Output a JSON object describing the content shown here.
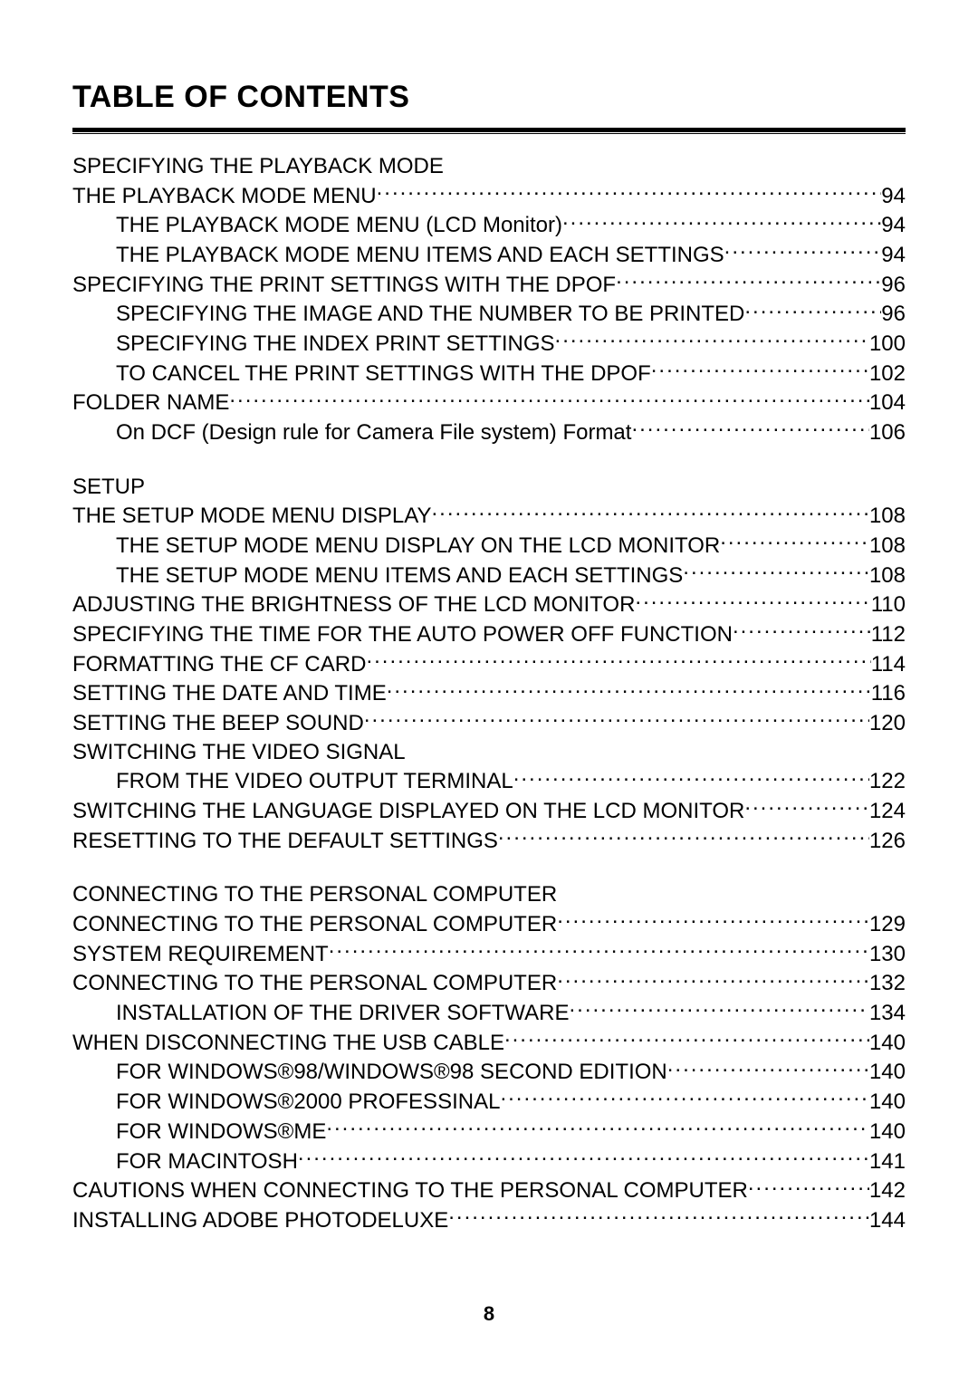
{
  "page": {
    "title": "TABLE OF CONTENTS",
    "pageNumber": "8"
  },
  "sections": [
    {
      "heading": "SPECIFYING THE PLAYBACK MODE",
      "entries": [
        {
          "indent": 1,
          "label": "THE PLAYBACK MODE MENU",
          "page": "94"
        },
        {
          "indent": 2,
          "label": "THE PLAYBACK MODE MENU (LCD Monitor)",
          "page": "94"
        },
        {
          "indent": 2,
          "label": "THE PLAYBACK MODE MENU ITEMS AND EACH SETTINGS",
          "page": "94"
        },
        {
          "indent": 1,
          "label": "SPECIFYING THE PRINT SETTINGS WITH THE DPOF",
          "page": "96"
        },
        {
          "indent": 2,
          "label": "SPECIFYING THE IMAGE AND THE NUMBER TO BE PRINTED",
          "page": "96"
        },
        {
          "indent": 2,
          "label": "SPECIFYING THE INDEX PRINT SETTINGS",
          "page": "100"
        },
        {
          "indent": 2,
          "label": "TO CANCEL THE PRINT SETTINGS WITH THE DPOF",
          "page": "102"
        },
        {
          "indent": 1,
          "label": "FOLDER NAME",
          "page": "104"
        },
        {
          "indent": 2,
          "label": "On DCF (Design rule for Camera File system) Format",
          "page": "106"
        }
      ]
    },
    {
      "heading": "SETUP",
      "entries": [
        {
          "indent": 1,
          "label": "THE SETUP MODE MENU DISPLAY",
          "page": "108"
        },
        {
          "indent": 2,
          "label": "THE SETUP MODE MENU DISPLAY ON THE LCD MONITOR",
          "page": "108"
        },
        {
          "indent": 2,
          "label": "THE SETUP MODE MENU ITEMS AND EACH SETTINGS",
          "page": "108"
        },
        {
          "indent": 1,
          "label": "ADJUSTING THE BRIGHTNESS OF THE LCD MONITOR",
          "page": "110"
        },
        {
          "indent": 1,
          "label": "SPECIFYING THE TIME FOR THE AUTO POWER OFF FUNCTION",
          "page": "112"
        },
        {
          "indent": 1,
          "label": "FORMATTING THE CF CARD",
          "page": "114"
        },
        {
          "indent": 1,
          "label": "SETTING THE DATE AND TIME",
          "page": "116"
        },
        {
          "indent": 1,
          "label": "SETTING THE BEEP SOUND",
          "page": "120"
        },
        {
          "indent": 1,
          "label": "SWITCHING THE VIDEO SIGNAL",
          "page": ""
        },
        {
          "indent": 2,
          "label": "FROM THE VIDEO OUTPUT TERMINAL",
          "page": "122"
        },
        {
          "indent": 1,
          "label": "SWITCHING THE LANGUAGE DISPLAYED ON THE LCD MONITOR",
          "page": "124"
        },
        {
          "indent": 1,
          "label": "RESETTING TO THE DEFAULT SETTINGS",
          "page": "126"
        }
      ]
    },
    {
      "heading": "CONNECTING TO THE PERSONAL COMPUTER",
      "entries": [
        {
          "indent": 1,
          "label": "CONNECTING TO THE PERSONAL COMPUTER",
          "page": "129"
        },
        {
          "indent": 1,
          "label": "SYSTEM REQUIREMENT",
          "page": "130"
        },
        {
          "indent": 1,
          "label": "CONNECTING TO THE PERSONAL COMPUTER",
          "page": "132"
        },
        {
          "indent": 2,
          "label": "INSTALLATION OF THE DRIVER SOFTWARE",
          "page": "134"
        },
        {
          "indent": 1,
          "label": "WHEN DISCONNECTING THE USB CABLE",
          "page": "140"
        },
        {
          "indent": 2,
          "label": "FOR WINDOWS®98/WINDOWS®98 SECOND EDITION",
          "page": "140"
        },
        {
          "indent": 2,
          "label": "FOR WINDOWS®2000 PROFESSINAL",
          "page": "140"
        },
        {
          "indent": 2,
          "label": "FOR WINDOWS®ME",
          "page": "140"
        },
        {
          "indent": 2,
          "label": "FOR MACINTOSH",
          "page": "141"
        },
        {
          "indent": 1,
          "label": "CAUTIONS WHEN CONNECTING TO THE PERSONAL COMPUTER",
          "page": "142"
        },
        {
          "indent": 1,
          "label": "INSTALLING ADOBE PHOTODELUXE",
          "page": "144"
        }
      ]
    }
  ]
}
